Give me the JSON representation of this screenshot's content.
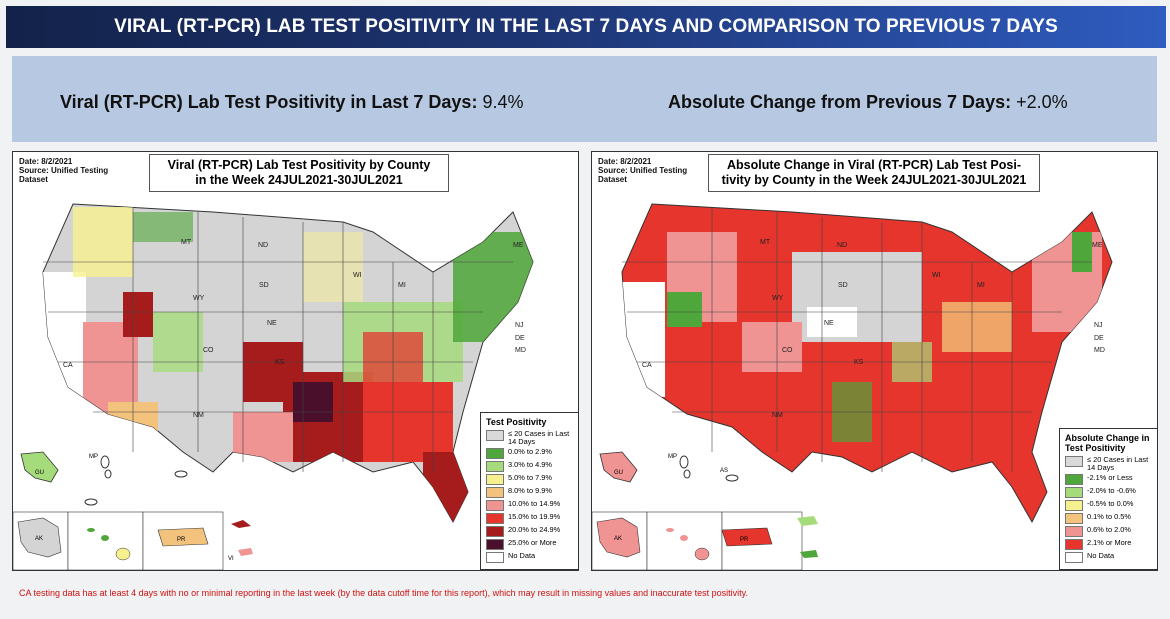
{
  "header": {
    "title": "VIRAL (RT-PCR) LAB TEST POSITIVITY IN THE LAST 7 DAYS AND COMPARISON TO PREVIOUS 7 DAYS"
  },
  "summary": {
    "positivity_label": "Viral (RT-PCR) Lab Test Positivity in Last 7 Days:",
    "positivity_value": "9.4%",
    "change_label": "Absolute Change from Previous 7 Days:",
    "change_value": "+2.0%"
  },
  "left_map": {
    "meta_date": "Date: 8/2/2021",
    "meta_source1": "Source: Unified Testing",
    "meta_source2": "Dataset",
    "title_line1": "Viral (RT-PCR) Lab Test Positivity by County",
    "title_line2": "in the Week 24JUL2021-30JUL2021",
    "legend": {
      "title": "Test Positivity",
      "items": [
        {
          "label": "≤ 20 Cases in Last 14 Days",
          "color": "#d9d9d9"
        },
        {
          "label": "0.0% to 2.9%",
          "color": "#4fa63a"
        },
        {
          "label": "3.0% to 4.9%",
          "color": "#a6db7c"
        },
        {
          "label": "5.0% to 7.9%",
          "color": "#f7f08f"
        },
        {
          "label": "8.0% to 9.9%",
          "color": "#f3c27c"
        },
        {
          "label": "10.0% to 14.9%",
          "color": "#ef9393"
        },
        {
          "label": "15.0% to 19.9%",
          "color": "#e5352d"
        },
        {
          "label": "20.0% to 24.9%",
          "color": "#a61b1b"
        },
        {
          "label": "25.0% or More",
          "color": "#4a0f2b"
        },
        {
          "label": "No Data",
          "color": "#ffffff"
        }
      ]
    }
  },
  "right_map": {
    "meta_date": "Date: 8/2/2021",
    "meta_source1": "Source: Unified Testing",
    "meta_source2": "Dataset",
    "title_line1": "Absolute Change in Viral (RT-PCR) Lab Test Posi-",
    "title_line2": "tivity by County in the Week 24JUL2021-30JUL2021",
    "legend": {
      "title": "Absolute Change in Test Positivity",
      "items": [
        {
          "label": "≤ 20 Cases in Last 14 Days",
          "color": "#d9d9d9"
        },
        {
          "label": "-2.1% or Less",
          "color": "#4fa63a"
        },
        {
          "label": "-2.0% to -0.6%",
          "color": "#a6db7c"
        },
        {
          "label": "-0.5% to 0.0%",
          "color": "#f7f08f"
        },
        {
          "label": "0.1% to 0.5%",
          "color": "#f3c27c"
        },
        {
          "label": "0.6% to 2.0%",
          "color": "#ef9393"
        },
        {
          "label": "2.1% or More",
          "color": "#e5352d"
        },
        {
          "label": "No Data",
          "color": "#ffffff"
        }
      ]
    }
  },
  "state_labels": [
    "CA",
    "MT",
    "ND",
    "SD",
    "NE",
    "WY",
    "CO",
    "NM",
    "KS",
    "MI",
    "WI",
    "ME",
    "NJ",
    "DE",
    "MD",
    "MP",
    "GU",
    "AK",
    "PR",
    "VI",
    "AS"
  ],
  "footnote": "CA testing data has at least 4 days with no or minimal reporting in the last week (by the data cutoff time for this report), which may result in missing values and inaccurate test positivity."
}
